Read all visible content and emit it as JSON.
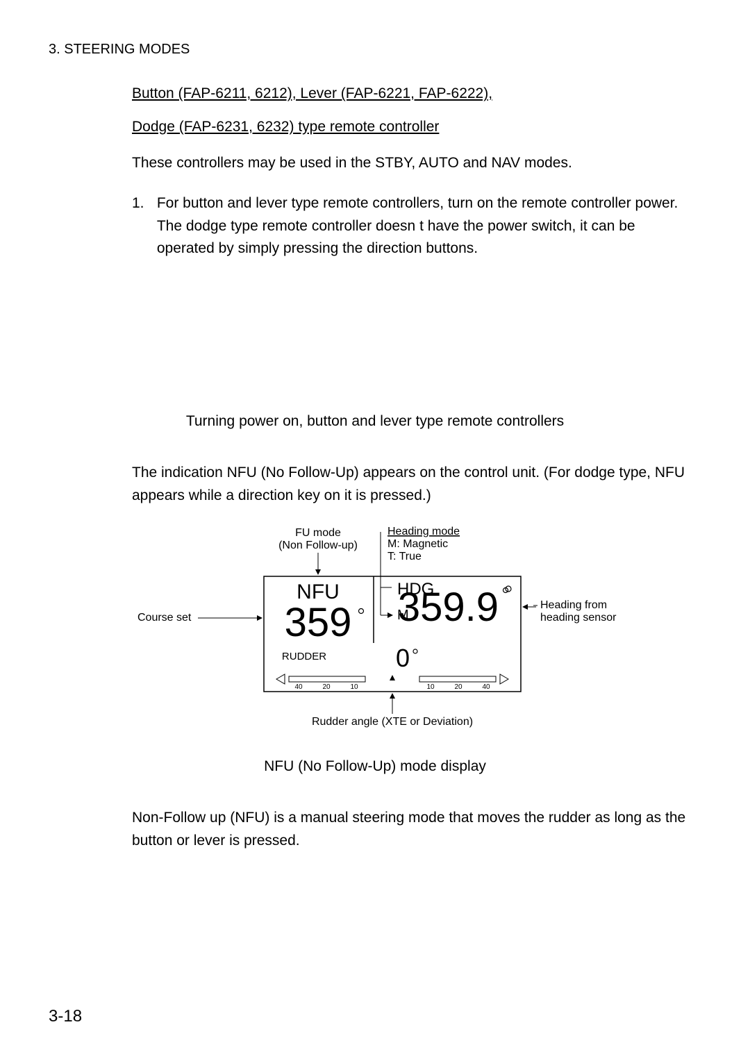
{
  "header": {
    "section": "3. STEERING MODES"
  },
  "title": {
    "line1": "Button (FAP-6211, 6212), Lever (FAP-6221, FAP-6222),",
    "line2": "Dodge (FAP-6231, 6232) type remote controller"
  },
  "intro": "These controllers may be used in the STBY, AUTO and NAV modes.",
  "step": {
    "num": "1.",
    "para1": "For button and lever type remote controllers, turn on the remote controller power.",
    "para2": "The dodge type remote controller doesn t have the power switch, it can be operated by simply pressing the direction buttons."
  },
  "fig1_caption": "Turning power on, button and lever type remote controllers",
  "indication": "The indication  NFU  (No Follow-Up) appears on the control unit. (For dodge type, NFU appears while a direction key on it is pressed.)",
  "display": {
    "type": "diagram",
    "labels": {
      "fu_mode_top": "FU mode",
      "fu_mode_bottom": "(Non Follow-up)",
      "heading_mode_title": "Heading mode",
      "heading_mode_m": "M: Magnetic",
      "heading_mode_t": "T: True",
      "nfu": "NFU",
      "course_value": "359",
      "degree": "°",
      "hdg": "HDG",
      "m_letter": "M",
      "heading_value": "359.9",
      "small_circle": "°",
      "rudder_label": "RUDDER",
      "rudder_value": "0",
      "course_set": "Course set",
      "heading_from_1": "Heading from",
      "heading_from_2": "heading sensor",
      "rudder_angle": "Rudder angle (XTE or Deviation)",
      "ticks": [
        "40",
        "20",
        "10",
        "10",
        "20",
        "40"
      ]
    },
    "colors": {
      "stroke": "#000000",
      "bg": "#ffffff",
      "text": "#000000"
    },
    "line_width": 1.5,
    "font": {
      "annotation": 16,
      "nfu": 30,
      "course": 58,
      "hdg": 24,
      "heading": 58,
      "rudder_lbl": 15,
      "rudder_val": 36,
      "tick": 10
    }
  },
  "fig2_caption": "NFU (No Follow-Up) mode display",
  "closing": "Non-Follow up (NFU) is a manual steering mode that moves the rudder as long as the button or lever is pressed.",
  "page_num": "3-18"
}
